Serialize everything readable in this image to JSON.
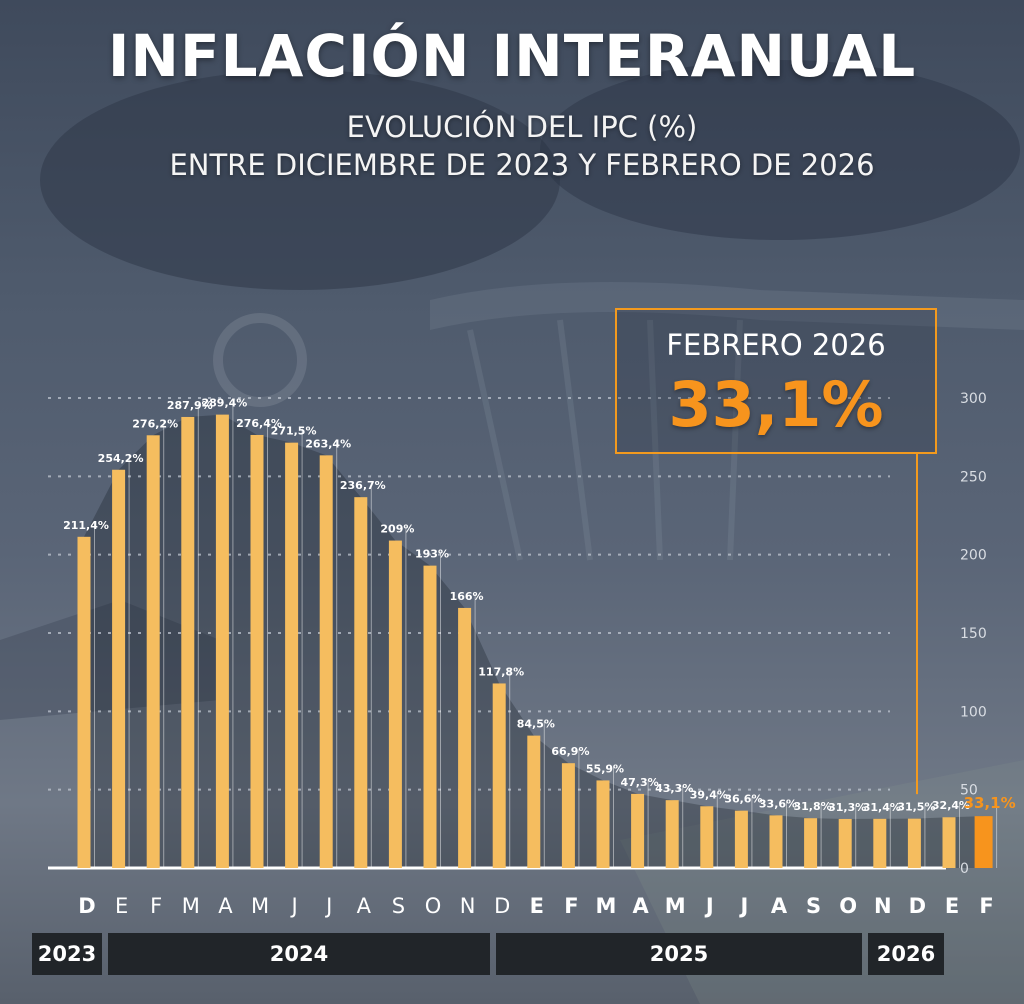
{
  "title": "INFLACIÓN INTERANUAL",
  "subtitle_line1": "EVOLUCIÓN DEL IPC (%)",
  "subtitle_line2": "ENTRE DICIEMBRE DE 2023 Y FEBRERO DE 2026",
  "callout": {
    "label": "FEBRERO 2026",
    "value": "33,1%"
  },
  "colors": {
    "bar": "#f5bd5f",
    "highlight": "#f7941d",
    "callout_border": "#f39a1e",
    "year_band": "#212529"
  },
  "chart_data": {
    "type": "bar",
    "categories": [
      "D",
      "E",
      "F",
      "M",
      "A",
      "M",
      "J",
      "J",
      "A",
      "S",
      "O",
      "N",
      "D",
      "E",
      "F",
      "M",
      "A",
      "M",
      "J",
      "J",
      "A",
      "S",
      "O",
      "N",
      "D",
      "E",
      "F"
    ],
    "values": [
      211.4,
      254.2,
      276.2,
      287.9,
      289.4,
      276.4,
      271.5,
      263.4,
      236.7,
      209,
      193,
      166,
      117.8,
      84.5,
      66.9,
      55.9,
      47.3,
      43.3,
      39.4,
      36.6,
      33.6,
      31.8,
      31.3,
      31.4,
      31.5,
      32.4,
      33.1
    ],
    "data_labels": [
      "211,4%",
      "254,2%",
      "276,2%",
      "287,9%",
      "289,4%",
      "276,4%",
      "271,5%",
      "263,4%",
      "236,7%",
      "209%",
      "193%",
      "166%",
      "117,8%",
      "84,5%",
      "66,9%",
      "55,9%",
      "47,3%",
      "43,3%",
      "39,4%",
      "36,6%",
      "33,6%",
      "31,8%",
      "31,3%",
      "31,4%",
      "31,5%",
      "32,4%",
      "33,1%"
    ],
    "bold_categories": [
      0,
      13,
      14,
      15,
      16,
      17,
      18,
      19,
      20,
      21,
      22,
      23,
      24,
      25,
      26
    ],
    "highlight_index": 26,
    "ylim": [
      0,
      300
    ],
    "yticks": [
      "0",
      "50",
      "100",
      "150",
      "200",
      "250",
      "300"
    ],
    "grid": true,
    "years": [
      "2023",
      "2024",
      "2025",
      "2026"
    ]
  }
}
